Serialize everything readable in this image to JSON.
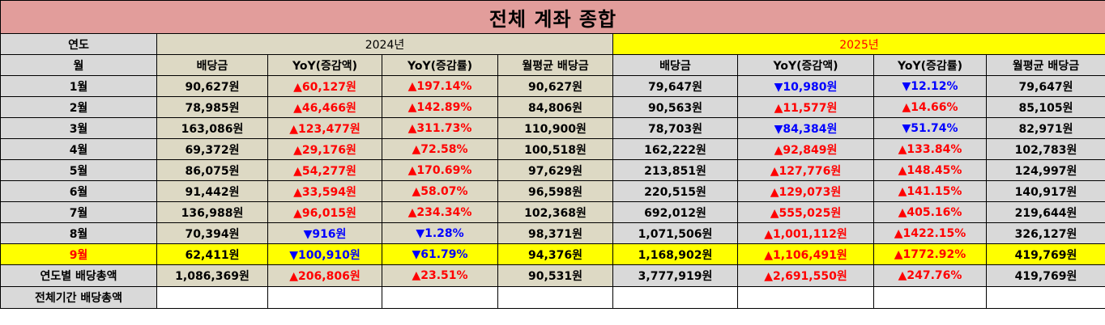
{
  "title": "전체 계좌 종합",
  "header": {
    "year_label": "연도",
    "month_label": "월",
    "year_2024": "2024년",
    "year_2025": "2025년",
    "columns": [
      "배당금",
      "YoY(증감액)",
      "YoY(증감률)",
      "월평균 배당금"
    ]
  },
  "rows": [
    {
      "month": "1월",
      "y2024": {
        "div": "90,627원",
        "amt": "▲60,127원",
        "amt_dir": "up",
        "pct": "▲197.14%",
        "pct_dir": "up",
        "avg": "90,627원"
      },
      "y2025": {
        "div": "79,647원",
        "amt": "▼10,980원",
        "amt_dir": "down",
        "pct": "▼12.12%",
        "pct_dir": "down",
        "avg": "79,647원"
      }
    },
    {
      "month": "2월",
      "y2024": {
        "div": "78,985원",
        "amt": "▲46,466원",
        "amt_dir": "up",
        "pct": "▲142.89%",
        "pct_dir": "up",
        "avg": "84,806원"
      },
      "y2025": {
        "div": "90,563원",
        "amt": "▲11,577원",
        "amt_dir": "up",
        "pct": "▲14.66%",
        "pct_dir": "up",
        "avg": "85,105원"
      }
    },
    {
      "month": "3월",
      "y2024": {
        "div": "163,086원",
        "amt": "▲123,477원",
        "amt_dir": "up",
        "pct": "▲311.73%",
        "pct_dir": "up",
        "avg": "110,900원"
      },
      "y2025": {
        "div": "78,703원",
        "amt": "▼84,384원",
        "amt_dir": "down",
        "pct": "▼51.74%",
        "pct_dir": "down",
        "avg": "82,971원"
      }
    },
    {
      "month": "4월",
      "y2024": {
        "div": "69,372원",
        "amt": "▲29,176원",
        "amt_dir": "up",
        "pct": "▲72.58%",
        "pct_dir": "up",
        "avg": "100,518원"
      },
      "y2025": {
        "div": "162,222원",
        "amt": "▲92,849원",
        "amt_dir": "up",
        "pct": "▲133.84%",
        "pct_dir": "up",
        "avg": "102,783원"
      }
    },
    {
      "month": "5월",
      "y2024": {
        "div": "86,075원",
        "amt": "▲54,277원",
        "amt_dir": "up",
        "pct": "▲170.69%",
        "pct_dir": "up",
        "avg": "97,629원"
      },
      "y2025": {
        "div": "213,851원",
        "amt": "▲127,776원",
        "amt_dir": "up",
        "pct": "▲148.45%",
        "pct_dir": "up",
        "avg": "124,997원"
      }
    },
    {
      "month": "6월",
      "y2024": {
        "div": "91,442원",
        "amt": "▲33,594원",
        "amt_dir": "up",
        "pct": "▲58.07%",
        "pct_dir": "up",
        "avg": "96,598원"
      },
      "y2025": {
        "div": "220,515원",
        "amt": "▲129,073원",
        "amt_dir": "up",
        "pct": "▲141.15%",
        "pct_dir": "up",
        "avg": "140,917원"
      }
    },
    {
      "month": "7월",
      "y2024": {
        "div": "136,988원",
        "amt": "▲96,015원",
        "amt_dir": "up",
        "pct": "▲234.34%",
        "pct_dir": "up",
        "avg": "102,368원"
      },
      "y2025": {
        "div": "692,012원",
        "amt": "▲555,025원",
        "amt_dir": "up",
        "pct": "▲405.16%",
        "pct_dir": "up",
        "avg": "219,644원"
      }
    },
    {
      "month": "8월",
      "y2024": {
        "div": "70,394원",
        "amt": "▼916원",
        "amt_dir": "down",
        "pct": "▼1.28%",
        "pct_dir": "down",
        "avg": "98,371원"
      },
      "y2025": {
        "div": "1,071,506원",
        "amt": "▲1,001,112원",
        "amt_dir": "up",
        "pct": "▲1422.15%",
        "pct_dir": "up",
        "avg": "326,127원"
      }
    },
    {
      "month": "9월",
      "highlight": true,
      "y2024": {
        "div": "62,411원",
        "amt": "▼100,910원",
        "amt_dir": "down",
        "pct": "▼61.79%",
        "pct_dir": "down",
        "avg": "94,376원"
      },
      "y2025": {
        "div": "1,168,902원",
        "amt": "▲1,106,491원",
        "amt_dir": "up",
        "pct": "▲1772.92%",
        "pct_dir": "up",
        "avg": "419,769원"
      }
    }
  ],
  "summary": {
    "annual_label": "연도별 배당총액",
    "y2024": {
      "div": "1,086,369원",
      "amt": "▲206,806원",
      "amt_dir": "up",
      "pct": "▲23.51%",
      "pct_dir": "up",
      "avg": "90,531원"
    },
    "y2025": {
      "div": "3,777,919원",
      "amt": "▲2,691,550원",
      "amt_dir": "up",
      "pct": "▲247.76%",
      "pct_dir": "up",
      "avg": "419,769원"
    },
    "total_label": "전체기간 배당총액"
  },
  "colors": {
    "title_bg": "#e29d9b",
    "header_gray": "#d9d9d9",
    "body_beige": "#ddd9c4",
    "highlight": "#ffff00",
    "up": "#ff0000",
    "down": "#0000ff"
  }
}
